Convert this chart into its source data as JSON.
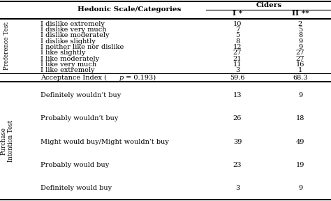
{
  "header_ciders": "Ciders",
  "header_col1": "Hedonic Scale/Categories",
  "header_col2": "I *",
  "header_col3": "II **",
  "section1_label": "Preference Test",
  "section1_rows": [
    [
      "I dislike extremely",
      "10",
      "2"
    ],
    [
      "I dislike very much",
      "7",
      "5"
    ],
    [
      "I dislike moderately",
      "5",
      "8"
    ],
    [
      "I dislike slightly",
      "8",
      "9"
    ],
    [
      "I neither like nor dislike",
      "12",
      "9"
    ],
    [
      "I like slightly",
      "27",
      "27"
    ],
    [
      "I like moderately",
      "21",
      "27"
    ],
    [
      "I like very much",
      "11",
      "16"
    ],
    [
      "I like extremely",
      "3",
      "1"
    ]
  ],
  "acceptance_row": [
    "Acceptance Index (p = 0.193)",
    "59.6",
    "68.3"
  ],
  "section2_label": "Purchase\nIntention Test",
  "section2_rows": [
    [
      "Definitely wouldn’t buy",
      "13",
      "9"
    ],
    [
      "Probably wouldn’t buy",
      "26",
      "18"
    ],
    [
      "Might would buy/Might wouldn’t buy",
      "39",
      "49"
    ],
    [
      "Probably would buy",
      "23",
      "19"
    ],
    [
      "Definitely would buy",
      "3",
      "9"
    ]
  ],
  "text_color": "#000000",
  "line_color": "#000000",
  "fs_header": 7.5,
  "fs_data": 7.0,
  "fs_section": 6.2
}
